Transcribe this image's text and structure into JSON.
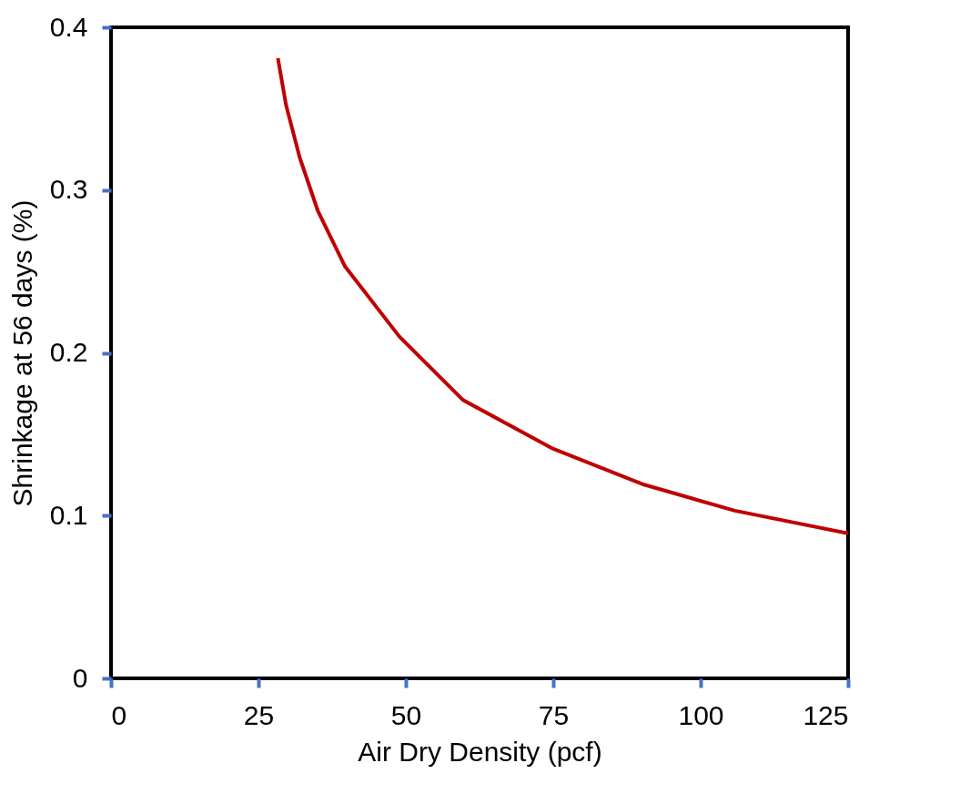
{
  "chart_data": {
    "type": "line",
    "xlabel": "Air Dry Density (pcf)",
    "ylabel": "Shrinkage at 56 days (%)",
    "x": [
      28.3,
      29.7,
      32.0,
      35.1,
      39.7,
      48.9,
      59.7,
      75.0,
      90.4,
      105.8,
      125
    ],
    "series": [
      {
        "color": "#c00000",
        "values": [
          0.381,
          0.352,
          0.32,
          0.287,
          0.253,
          0.21,
          0.171,
          0.141,
          0.119,
          0.103,
          0.089
        ]
      }
    ],
    "xlim": [
      0,
      125
    ],
    "xticks": [
      0,
      25,
      50,
      75,
      100,
      125
    ],
    "ylim": [
      0,
      0.4
    ],
    "yticks": [
      0,
      0.1,
      0.2,
      0.3,
      0.4
    ],
    "grid": false,
    "marker": "none",
    "line_style": "solid"
  }
}
